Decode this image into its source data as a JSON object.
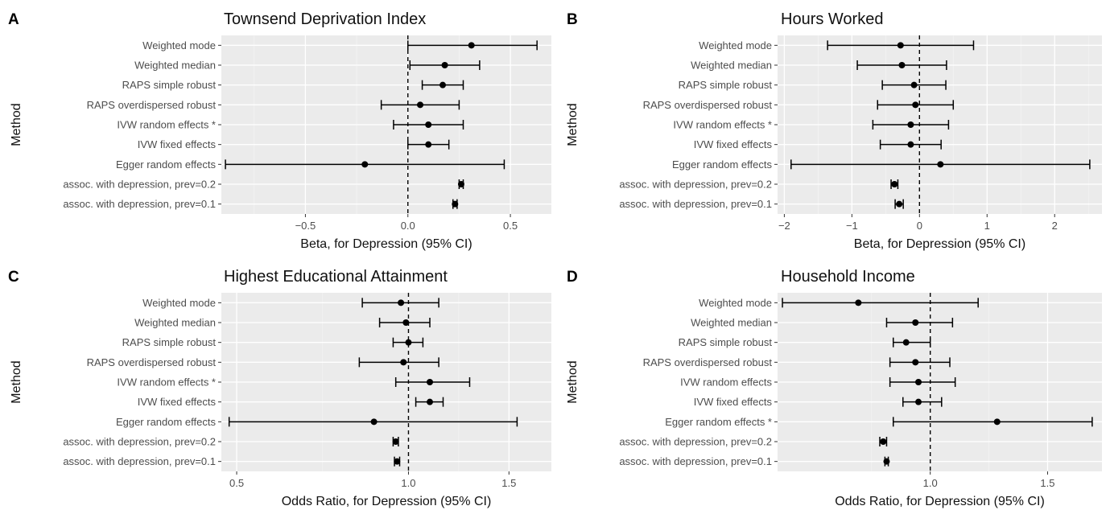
{
  "chart_data": [
    {
      "tag": "A",
      "type": "forest",
      "title": "Townsend Deprivation Index",
      "xlabel": "Beta, for Depression (95% CI)",
      "ylabel": "Method",
      "scale": "linear",
      "xlim": [
        -0.91,
        0.7
      ],
      "xticks": [
        -0.5,
        0.0,
        0.5
      ],
      "xtick_labels": [
        "−0.5",
        "0.0",
        "0.5"
      ],
      "reference": 0,
      "categories": [
        "Weighted mode",
        "Weighted median",
        "RAPS simple robust",
        "RAPS overdispersed robust",
        "IVW random effects *",
        "IVW fixed effects",
        "Egger random effects",
        "assoc. with depression, prev=0.2",
        "assoc. with depression, prev=0.1"
      ],
      "estimate": [
        0.31,
        0.18,
        0.17,
        0.06,
        0.1,
        0.1,
        -0.21,
        0.26,
        0.23
      ],
      "lower": [
        0.0,
        0.01,
        0.07,
        -0.13,
        -0.07,
        0.0,
        -0.89,
        0.25,
        0.22
      ],
      "upper": [
        0.63,
        0.35,
        0.27,
        0.25,
        0.27,
        0.2,
        0.47,
        0.27,
        0.24
      ]
    },
    {
      "tag": "B",
      "type": "forest",
      "title": "Hours Worked",
      "xlabel": "Beta, for Depression (95% CI)",
      "ylabel": "Method",
      "scale": "linear",
      "xlim": [
        -2.1,
        2.7
      ],
      "xticks": [
        -2,
        -1,
        0,
        1,
        2
      ],
      "xtick_labels": [
        "−2",
        "−1",
        "0",
        "1",
        "2"
      ],
      "reference": 0,
      "categories": [
        "Weighted mode",
        "Weighted median",
        "RAPS simple robust",
        "RAPS overdispersed robust",
        "IVW random effects *",
        "IVW fixed effects",
        "Egger random effects",
        "assoc. with depression, prev=0.2",
        "assoc. with depression, prev=0.1"
      ],
      "estimate": [
        -0.28,
        -0.26,
        -0.08,
        -0.06,
        -0.13,
        -0.13,
        0.31,
        -0.37,
        -0.3
      ],
      "lower": [
        -1.36,
        -0.92,
        -0.55,
        -0.62,
        -0.69,
        -0.58,
        -1.9,
        -0.42,
        -0.36
      ],
      "upper": [
        0.8,
        0.4,
        0.39,
        0.5,
        0.43,
        0.32,
        2.52,
        -0.32,
        -0.24
      ]
    },
    {
      "tag": "C",
      "type": "forest",
      "title": "Highest Educational Attainment",
      "xlabel": "Odds Ratio, for Depression (95% CI)",
      "ylabel": "Method",
      "scale": "log",
      "xlim": [
        0.47,
        1.78
      ],
      "xticks": [
        0.5,
        1.0,
        1.5
      ],
      "xtick_labels": [
        "0.5",
        "1.0",
        "1.5"
      ],
      "reference": 1,
      "categories": [
        "Weighted mode",
        "Weighted median",
        "RAPS simple robust",
        "RAPS overdispersed robust",
        "IVW random effects *",
        "IVW fixed effects",
        "Egger random effects",
        "assoc. with depression, prev=0.2",
        "assoc. with depression, prev=0.1"
      ],
      "estimate": [
        0.97,
        0.99,
        1.0,
        0.98,
        1.09,
        1.09,
        0.87,
        0.95,
        0.955
      ],
      "lower": [
        0.83,
        0.89,
        0.94,
        0.82,
        0.95,
        1.03,
        0.485,
        0.94,
        0.945
      ],
      "upper": [
        1.13,
        1.09,
        1.06,
        1.13,
        1.28,
        1.15,
        1.55,
        0.96,
        0.965
      ]
    },
    {
      "tag": "D",
      "type": "forest",
      "title": "Household Income",
      "xlabel": "Odds Ratio, for Depression (95% CI)",
      "ylabel": "Method",
      "scale": "log",
      "xlim": [
        0.59,
        1.81
      ],
      "xticks": [
        1.0,
        1.5
      ],
      "xtick_labels": [
        "1.0",
        "1.5"
      ],
      "reference": 1,
      "categories": [
        "Weighted mode",
        "Weighted median",
        "RAPS simple robust",
        "RAPS overdispersed robust",
        "IVW random effects",
        "IVW fixed effects",
        "Egger random effects *",
        "assoc. with depression, prev=0.2",
        "assoc. with depression, prev=0.1"
      ],
      "estimate": [
        0.78,
        0.95,
        0.92,
        0.95,
        0.96,
        0.96,
        1.26,
        0.85,
        0.86
      ],
      "lower": [
        0.6,
        0.86,
        0.88,
        0.87,
        0.87,
        0.91,
        0.88,
        0.84,
        0.855
      ],
      "upper": [
        1.18,
        1.08,
        1.0,
        1.07,
        1.09,
        1.04,
        1.75,
        0.86,
        0.865
      ]
    }
  ]
}
